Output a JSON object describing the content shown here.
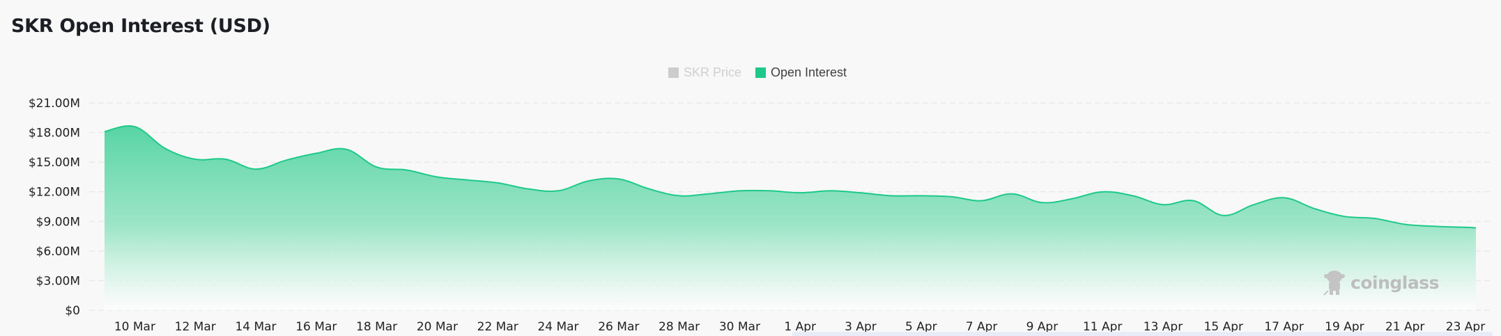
{
  "header": {
    "title": "SKR Open Interest (USD)"
  },
  "legend": [
    {
      "label": "SKR Price",
      "color": "#cccccc",
      "active": false
    },
    {
      "label": "Open Interest",
      "color": "#1dc98a",
      "active": true
    }
  ],
  "watermark": {
    "text": "coinglass",
    "icon": "coinglass-logo-icon"
  },
  "colors": {
    "line": "#1dc98a",
    "area_top": "#4fd3a0",
    "area_bottom": "#ffffff",
    "grid": "#e6e6e6",
    "slider": "#e8ecf8"
  },
  "chart_data": {
    "type": "area",
    "title": "SKR Open Interest (USD)",
    "xlabel": "",
    "ylabel": "",
    "ylim": [
      0,
      21000000
    ],
    "grid": true,
    "legend_position": "top-center",
    "y_ticks": [
      "$0",
      "$3.00M",
      "$6.00M",
      "$9.00M",
      "$12.00M",
      "$15.00M",
      "$18.00M",
      "$21.00M"
    ],
    "x_ticks": [
      "10 Mar",
      "12 Mar",
      "14 Mar",
      "16 Mar",
      "18 Mar",
      "20 Mar",
      "22 Mar",
      "24 Mar",
      "26 Mar",
      "28 Mar",
      "30 Mar",
      "1 Apr",
      "3 Apr",
      "5 Apr",
      "7 Apr",
      "9 Apr",
      "11 Apr",
      "13 Apr",
      "15 Apr",
      "17 Apr",
      "19 Apr",
      "21 Apr",
      "23 Apr"
    ],
    "series": [
      {
        "name": "Open Interest",
        "unit": "USD millions",
        "x": [
          "9 Mar",
          "10 Mar",
          "11 Mar",
          "12 Mar",
          "13 Mar",
          "14 Mar",
          "15 Mar",
          "16 Mar",
          "17 Mar",
          "18 Mar",
          "19 Mar",
          "20 Mar",
          "21 Mar",
          "22 Mar",
          "23 Mar",
          "24 Mar",
          "25 Mar",
          "26 Mar",
          "27 Mar",
          "28 Mar",
          "29 Mar",
          "30 Mar",
          "31 Mar",
          "1 Apr",
          "2 Apr",
          "3 Apr",
          "4 Apr",
          "5 Apr",
          "6 Apr",
          "7 Apr",
          "8 Apr",
          "9 Apr",
          "10 Apr",
          "11 Apr",
          "12 Apr",
          "13 Apr",
          "14 Apr",
          "15 Apr",
          "16 Apr",
          "17 Apr",
          "18 Apr",
          "19 Apr",
          "20 Apr",
          "21 Apr",
          "22 Apr",
          "23 Apr",
          "24 Apr"
        ],
        "values": [
          18.1,
          18.6,
          16.4,
          15.3,
          15.3,
          14.3,
          15.2,
          15.9,
          16.3,
          14.5,
          14.2,
          13.5,
          13.2,
          12.9,
          12.3,
          12.1,
          13.1,
          13.3,
          12.3,
          11.6,
          11.8,
          12.1,
          12.1,
          11.9,
          12.1,
          11.9,
          11.6,
          11.6,
          11.5,
          11.1,
          11.8,
          10.9,
          11.3,
          12.0,
          11.6,
          10.7,
          11.1,
          9.6,
          10.7,
          11.4,
          10.3,
          9.5,
          9.3,
          8.7,
          8.5,
          8.4,
          8.35
        ]
      },
      {
        "name": "SKR Price",
        "hidden": true,
        "values": []
      }
    ]
  }
}
